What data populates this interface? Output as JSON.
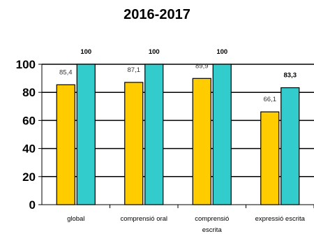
{
  "chart_data": {
    "type": "bar",
    "title": "2016-2017",
    "xlabel": "",
    "ylabel": "",
    "ylim": [
      0,
      100
    ],
    "yticks": [
      "0",
      "20",
      "40",
      "60",
      "80",
      "100"
    ],
    "grid": true,
    "categories": [
      [
        "global"
      ],
      [
        "comprensió oral"
      ],
      [
        "comprensió",
        "escrita"
      ],
      [
        "expressió escrita"
      ]
    ],
    "series": [
      {
        "color": "#FFCC00",
        "values": [
          85.4,
          87.1,
          89.9,
          66.1
        ],
        "labels": [
          "85,4",
          "87,1",
          "89,9",
          "66,1"
        ],
        "label_bold": false
      },
      {
        "color": "#33CCCC",
        "values": [
          100,
          100,
          100,
          83.3
        ],
        "labels": [
          "100",
          "100",
          "100",
          "83,3"
        ],
        "label_bold": true
      }
    ]
  }
}
